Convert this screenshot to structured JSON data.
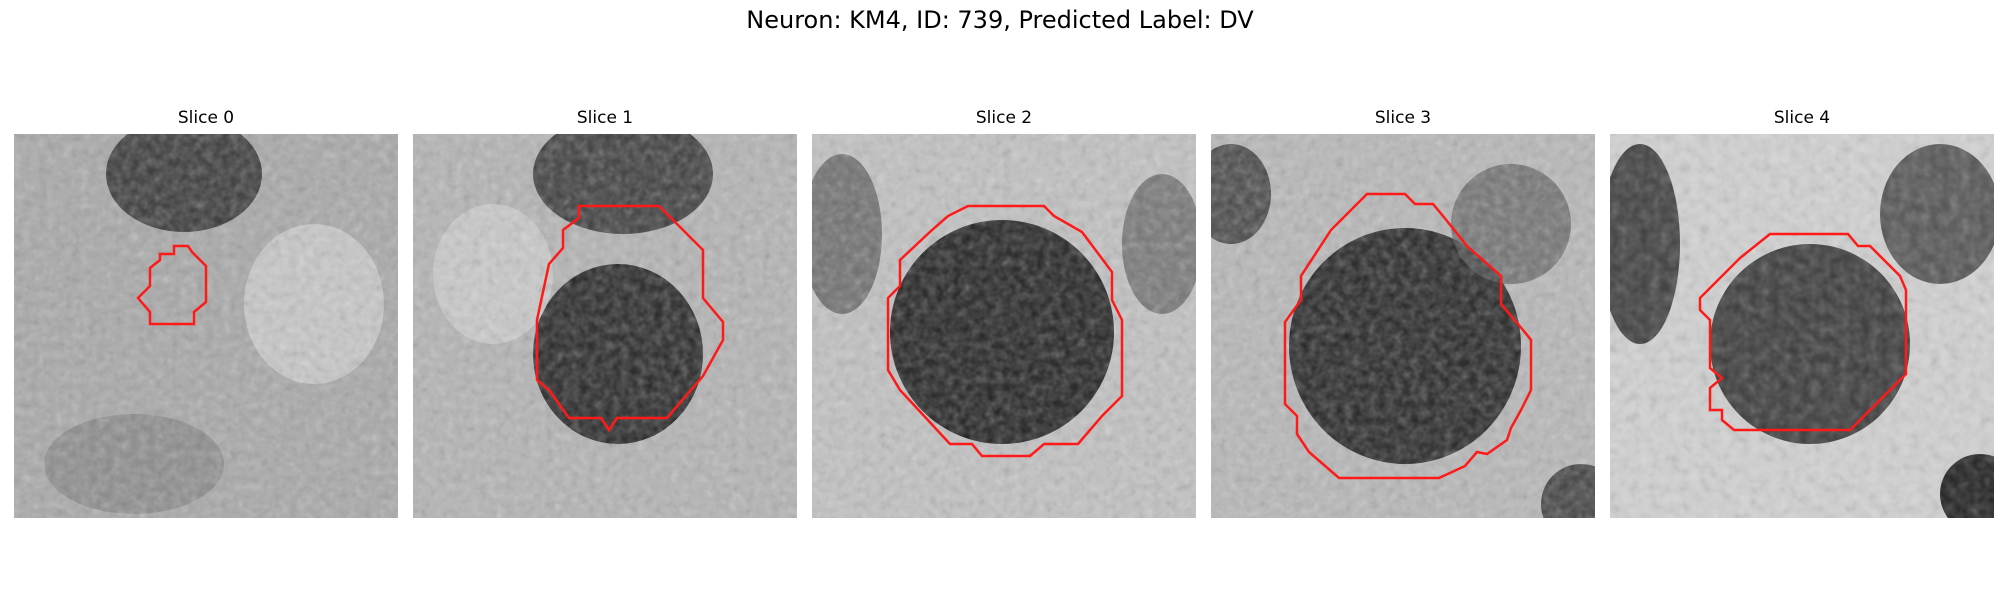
{
  "figure": {
    "title": "Neuron: KM4, ID: 739, Predicted Label: DV"
  },
  "slices": [
    {
      "title": "Slice 0"
    },
    {
      "title": "Slice 1"
    },
    {
      "title": "Slice 2"
    },
    {
      "title": "Slice 3"
    },
    {
      "title": "Slice 4"
    }
  ],
  "colors": {
    "outline": "#ff1a1a"
  }
}
